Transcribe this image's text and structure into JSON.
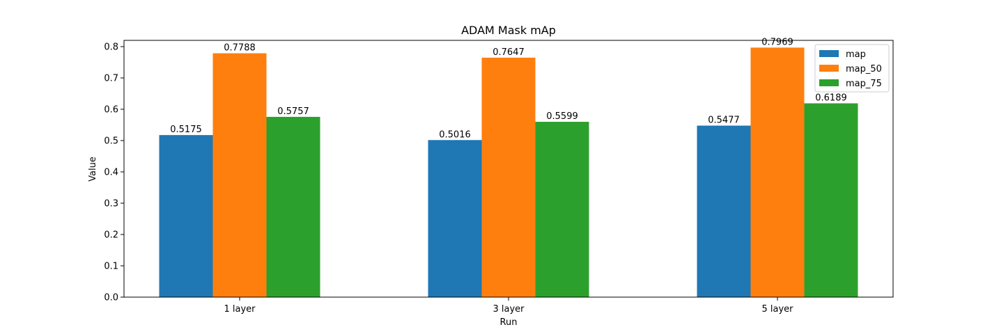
{
  "chart_data": {
    "type": "bar",
    "title": "ADAM Mask mAp",
    "xlabel": "Run",
    "ylabel": "Value",
    "categories": [
      "1 layer",
      "3 layer",
      "5 layer"
    ],
    "series": [
      {
        "name": "map",
        "color": "#1f77b4",
        "values": [
          0.5175,
          0.5016,
          0.5477
        ]
      },
      {
        "name": "map_50",
        "color": "#ff7f0e",
        "values": [
          0.7788,
          0.7647,
          0.7969
        ]
      },
      {
        "name": "map_75",
        "color": "#2ca02c",
        "values": [
          0.5757,
          0.5599,
          0.6189
        ]
      }
    ],
    "ylim": [
      0,
      0.82
    ],
    "yticks": [
      "0.0",
      "0.1",
      "0.2",
      "0.3",
      "0.4",
      "0.5",
      "0.6",
      "0.7",
      "0.8"
    ],
    "data_labels": [
      [
        "0.5175",
        "0.5016",
        "0.5477"
      ],
      [
        "0.7788",
        "0.7647",
        "0.7969"
      ],
      [
        "0.5757",
        "0.5599",
        "0.6189"
      ]
    ],
    "grid": false,
    "legend": "top-right"
  }
}
